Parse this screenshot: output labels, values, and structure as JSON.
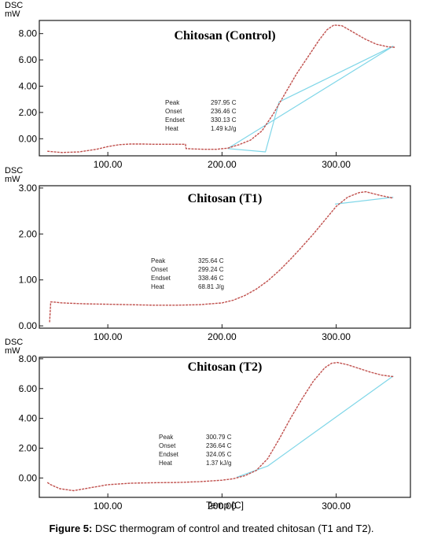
{
  "caption": {
    "label": "Figure 5:",
    "text": "DSC thermogram of control and treated chitosan (T1 and T2)."
  },
  "colors": {
    "curve": "#c0504d",
    "baseline": "#7fd6e8",
    "frame": "#1a1a1a"
  },
  "chart_data": [
    {
      "type": "line",
      "title": "Chitosan (Control)",
      "ylabel": "DSC\nmW",
      "xlabel": "",
      "xlim": [
        40,
        365
      ],
      "ylim": [
        -1.3,
        9.0
      ],
      "xticks": [
        100,
        200,
        300
      ],
      "xtick_labels": [
        "100.00",
        "200.00",
        "300.00"
      ],
      "yticks": [
        0,
        2,
        4,
        6,
        8
      ],
      "ytick_labels": [
        "0.00",
        "2.00",
        "4.00",
        "6.00",
        "8.00"
      ],
      "grid": false,
      "annotation": {
        "labels": [
          "Peak",
          "Onset",
          "Endset",
          "Heat"
        ],
        "values": [
          "297.95 C",
          "236.46 C",
          "330.13 C",
          "1.49 kJ/g"
        ]
      },
      "series": [
        {
          "role": "curve",
          "x": [
            47,
            60,
            75,
            90,
            100,
            110,
            120,
            130,
            140,
            150,
            160,
            168,
            168.5,
            175,
            185,
            195,
            205,
            215,
            225,
            235,
            245,
            255,
            265,
            275,
            285,
            292,
            298,
            305,
            315,
            325,
            335,
            345,
            352
          ],
          "y": [
            -0.95,
            -1.05,
            -1.0,
            -0.8,
            -0.6,
            -0.45,
            -0.4,
            -0.4,
            -0.42,
            -0.42,
            -0.42,
            -0.42,
            -0.75,
            -0.78,
            -0.8,
            -0.8,
            -0.72,
            -0.45,
            -0.1,
            0.6,
            1.9,
            3.4,
            4.9,
            6.2,
            7.5,
            8.3,
            8.65,
            8.6,
            8.1,
            7.6,
            7.2,
            7.0,
            6.95
          ]
        },
        {
          "role": "baseline",
          "x": [
            205,
            238,
            250,
            350
          ],
          "y": [
            -0.75,
            -1.0,
            2.8,
            7.05
          ]
        },
        {
          "role": "baseline",
          "x": [
            205,
            350
          ],
          "y": [
            -0.75,
            7.05
          ]
        }
      ]
    },
    {
      "type": "line",
      "title": "Chitosan (T1)",
      "ylabel": "DSC\nmW",
      "xlabel": "",
      "xlim": [
        40,
        365
      ],
      "ylim": [
        -0.05,
        3.05
      ],
      "xticks": [
        100,
        200,
        300
      ],
      "xtick_labels": [
        "100.00",
        "200.00",
        "300.00"
      ],
      "yticks": [
        0,
        1,
        2,
        3
      ],
      "ytick_labels": [
        "0.00",
        "1.00",
        "2.00",
        "3.00"
      ],
      "grid": false,
      "annotation": {
        "labels": [
          "Peak",
          "Onset",
          "Endset",
          "Heat"
        ],
        "values": [
          "325.64 C",
          "299.24 C",
          "338.46 C",
          "68.81 J/g"
        ]
      },
      "series": [
        {
          "role": "curve",
          "x": [
            49,
            49.5,
            50,
            52,
            60,
            80,
            100,
            120,
            140,
            160,
            180,
            200,
            210,
            220,
            230,
            240,
            250,
            260,
            270,
            280,
            290,
            300,
            310,
            320,
            326,
            332,
            340,
            350
          ],
          "y": [
            0.08,
            0.3,
            0.52,
            0.52,
            0.5,
            0.48,
            0.47,
            0.46,
            0.45,
            0.45,
            0.46,
            0.5,
            0.56,
            0.66,
            0.8,
            0.98,
            1.2,
            1.45,
            1.72,
            2.0,
            2.3,
            2.6,
            2.8,
            2.9,
            2.92,
            2.88,
            2.83,
            2.78
          ]
        },
        {
          "role": "baseline",
          "x": [
            299,
            350
          ],
          "y": [
            2.65,
            2.8
          ]
        }
      ]
    },
    {
      "type": "line",
      "title": "Chitosan (T2)",
      "ylabel": "DSC\nmW",
      "xlabel": "Temp  [C]",
      "xlim": [
        40,
        365
      ],
      "ylim": [
        -1.3,
        8.1
      ],
      "xticks": [
        100,
        200,
        300
      ],
      "xtick_labels": [
        "100.00",
        "200.00",
        "300.00"
      ],
      "yticks": [
        0,
        2,
        4,
        6,
        8
      ],
      "ytick_labels": [
        "0.00",
        "2.00",
        "4.00",
        "6.00",
        "8.00"
      ],
      "grid": false,
      "annotation": {
        "labels": [
          "Peak",
          "Onset",
          "Endset",
          "Heat"
        ],
        "values": [
          "300.79 C",
          "236.64 C",
          "324.05 C",
          "1.37 kJ/g"
        ]
      },
      "series": [
        {
          "role": "curve",
          "x": [
            47,
            50,
            58,
            70,
            85,
            100,
            120,
            140,
            160,
            180,
            200,
            210,
            220,
            230,
            240,
            250,
            260,
            270,
            280,
            290,
            296,
            301,
            310,
            320,
            330,
            340,
            350
          ],
          "y": [
            -0.3,
            -0.45,
            -0.72,
            -0.85,
            -0.65,
            -0.45,
            -0.35,
            -0.32,
            -0.3,
            -0.25,
            -0.15,
            -0.05,
            0.15,
            0.5,
            1.3,
            2.6,
            4.0,
            5.3,
            6.5,
            7.4,
            7.7,
            7.75,
            7.6,
            7.35,
            7.1,
            6.9,
            6.8
          ]
        },
        {
          "role": "baseline",
          "x": [
            213,
            240,
            350
          ],
          "y": [
            0.05,
            0.8,
            6.85
          ]
        }
      ]
    }
  ]
}
